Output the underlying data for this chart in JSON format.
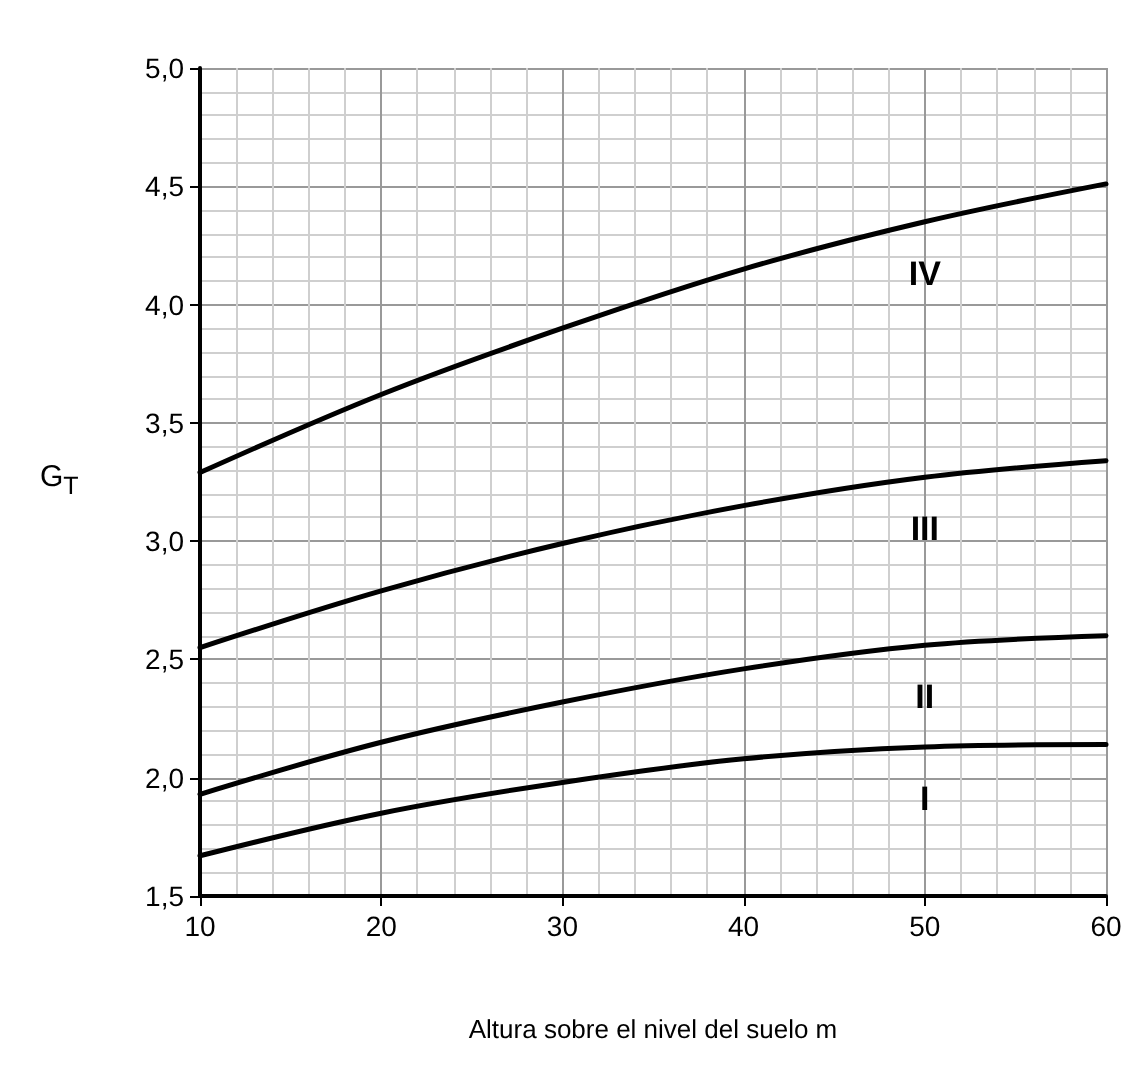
{
  "chart_data": {
    "type": "line",
    "ylabel": "G$_{T}$",
    "xlabel": "Altura sobre el nivel del suelo m",
    "x": [
      10,
      20,
      30,
      40,
      50,
      60
    ],
    "series": [
      {
        "name": "IV",
        "color": "#000000",
        "values": [
          3.29,
          3.62,
          3.9,
          4.15,
          4.35,
          4.51
        ]
      },
      {
        "name": "III",
        "color": "#000000",
        "values": [
          2.55,
          2.79,
          2.99,
          3.15,
          3.27,
          3.34
        ]
      },
      {
        "name": "II",
        "color": "#000000",
        "values": [
          1.93,
          2.15,
          2.32,
          2.46,
          2.56,
          2.6
        ]
      },
      {
        "name": "I",
        "color": "#000000",
        "values": [
          1.67,
          1.85,
          1.98,
          2.08,
          2.13,
          2.14
        ]
      }
    ],
    "xlim": [
      10,
      60
    ],
    "xticks": [
      10,
      20,
      30,
      40,
      50,
      60
    ],
    "ylim": [
      1.5,
      5
    ],
    "yticks": [
      {
        "value": 1.5,
        "label": "1,5"
      },
      {
        "value": 2,
        "label": "2,0"
      },
      {
        "value": 2.5,
        "label": "2,5"
      },
      {
        "value": 3,
        "label": "3,0"
      },
      {
        "value": 3.5,
        "label": "3,5"
      },
      {
        "value": 4,
        "label": "4,0"
      },
      {
        "value": 4.5,
        "label": "4,5"
      },
      {
        "value": 5,
        "label": "5,0"
      }
    ],
    "grid": true,
    "legend": false,
    "marker": "none",
    "line_style": "solid"
  }
}
